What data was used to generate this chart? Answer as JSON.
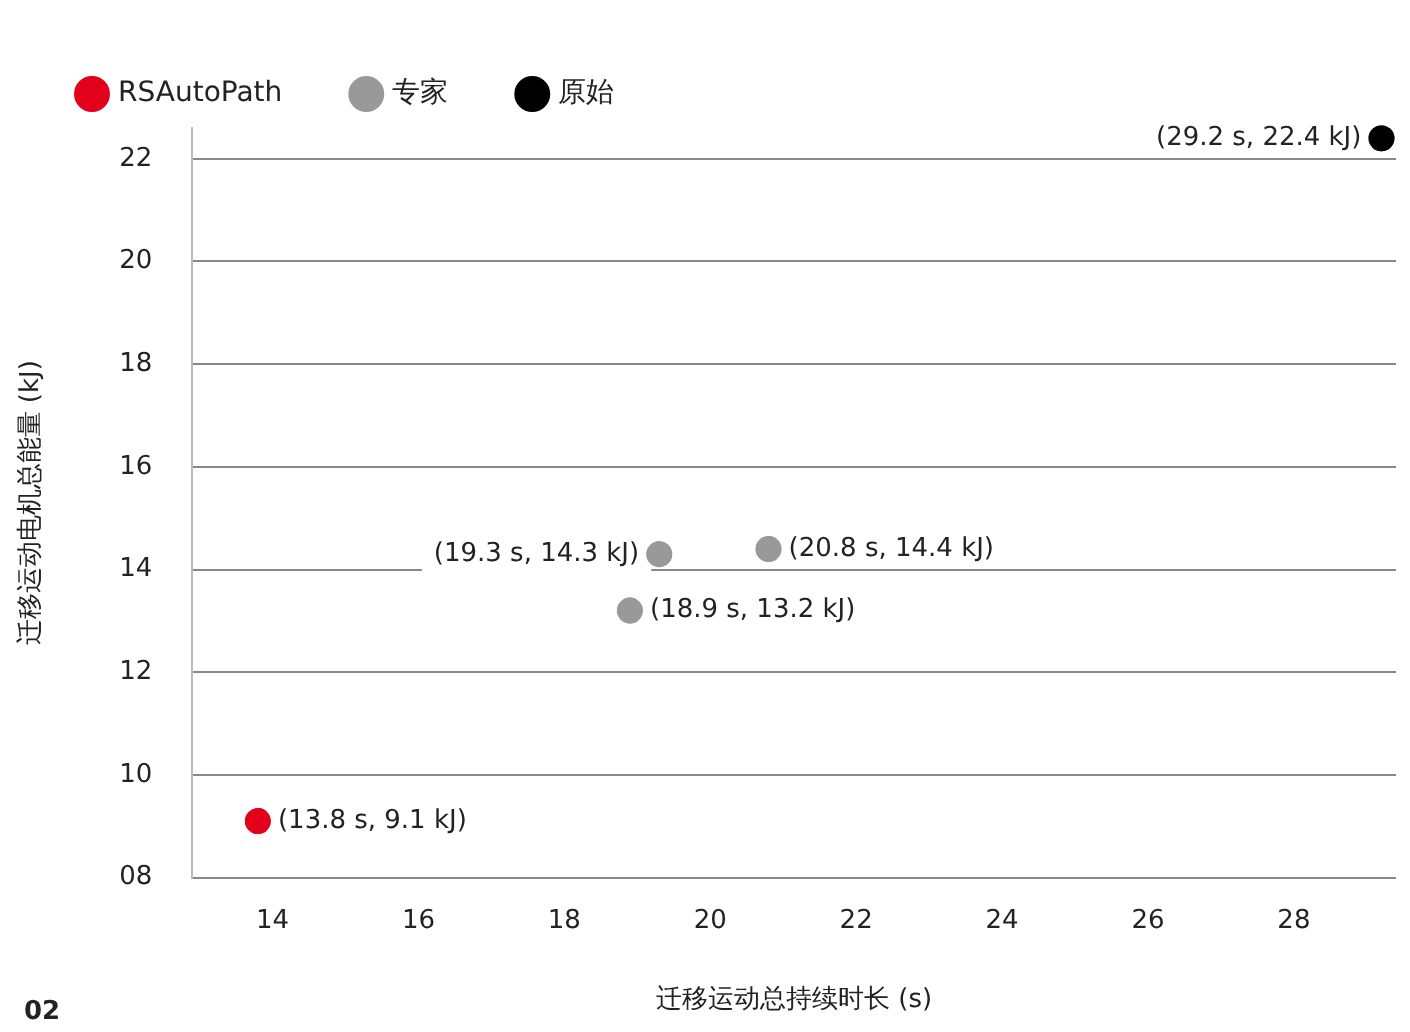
{
  "chart_data": {
    "type": "scatter",
    "xlabel": "迁移运动总持续时长 (s)",
    "ylabel": "迁移运动电机总能量 (kJ)",
    "series": [
      {
        "name": "RSAutoPath",
        "color": "#e2001a",
        "x": [
          13.8
        ],
        "values": [
          9.1
        ],
        "value_labels": [
          "(13.8 s, 9.1 kJ)"
        ]
      },
      {
        "name": "专家",
        "color": "#999999",
        "x": [
          19.3,
          20.8,
          18.9
        ],
        "values": [
          14.3,
          14.4,
          13.2
        ],
        "value_labels": [
          "(19.3 s, 14.3 kJ)",
          "(20.8 s, 14.4 kJ)",
          "(18.9 s, 13.2 kJ)"
        ]
      },
      {
        "name": "原始",
        "color": "#000000",
        "x": [
          29.2
        ],
        "values": [
          22.4
        ],
        "value_labels": [
          "(29.2 s, 22.4 kJ)"
        ]
      }
    ],
    "xlim": [
      12.9,
      29.4
    ],
    "xticks": [
      14,
      16,
      18,
      20,
      22,
      24,
      26,
      28
    ],
    "ylim": [
      8,
      22.6
    ],
    "yticks": [
      {
        "value": 8,
        "label": "08"
      },
      10,
      12,
      14,
      16,
      18,
      20,
      22
    ],
    "grid": "y",
    "legend": "top left",
    "marker": "circle",
    "annotations": [
      "02"
    ]
  }
}
